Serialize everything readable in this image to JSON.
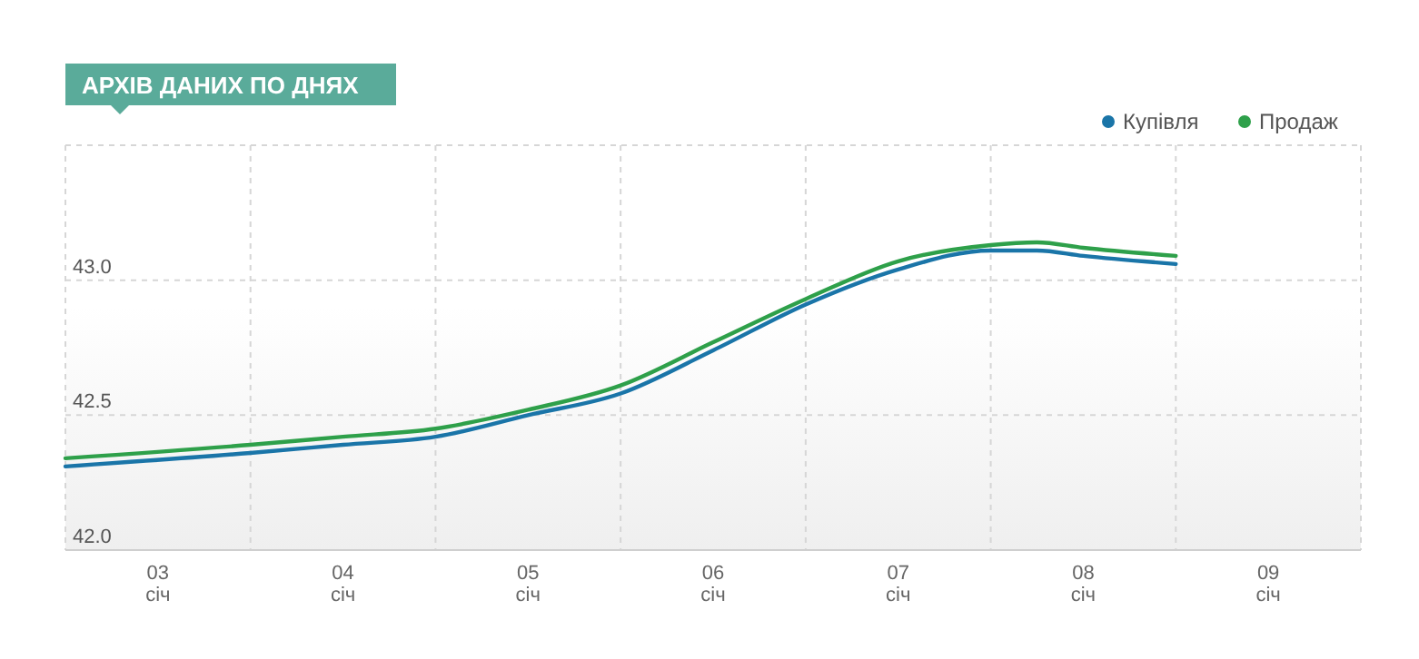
{
  "chart_data": {
    "type": "line",
    "title": "АРХІВ ДАНИХ ПО ДНЯХ",
    "x": [
      2.5,
      3.5,
      4,
      4.5,
      5,
      5.5,
      6,
      6.5,
      7,
      7.5,
      7.75,
      8,
      8.5
    ],
    "series": [
      {
        "name": "Купівля",
        "color": "#1a75a8",
        "values": [
          42.31,
          42.36,
          42.39,
          42.42,
          42.5,
          42.58,
          42.74,
          42.91,
          43.04,
          43.11,
          43.11,
          43.09,
          43.06
        ]
      },
      {
        "name": "Продаж",
        "color": "#2ea04a",
        "values": [
          42.34,
          42.39,
          42.42,
          42.45,
          42.52,
          42.61,
          42.77,
          42.93,
          43.07,
          43.13,
          43.14,
          43.12,
          43.09
        ]
      }
    ],
    "xlim": [
      2.5,
      9.5
    ],
    "xticks": [
      {
        "value": 2.5,
        "label": null
      },
      {
        "value": 3,
        "label": "03\nсіч"
      },
      {
        "value": 3.5,
        "label": null
      },
      {
        "value": 4,
        "label": "04\nсіч"
      },
      {
        "value": 4.5,
        "label": null
      },
      {
        "value": 5,
        "label": "05\nсіч"
      },
      {
        "value": 5.5,
        "label": null
      },
      {
        "value": 6,
        "label": "06\nсіч"
      },
      {
        "value": 6.5,
        "label": null
      },
      {
        "value": 7,
        "label": "07\nсіч"
      },
      {
        "value": 7.5,
        "label": null
      },
      {
        "value": 8,
        "label": "08\nсіч"
      },
      {
        "value": 8.5,
        "label": null
      },
      {
        "value": 9,
        "label": "09\nсіч"
      },
      {
        "value": 9.5,
        "label": null
      }
    ],
    "ylim": [
      42,
      43.5
    ],
    "yticks": [
      {
        "value": 42,
        "label": "42.0"
      },
      {
        "value": 42.5,
        "label": "42.5"
      },
      {
        "value": 43,
        "label": "43.0"
      }
    ],
    "grid": true,
    "legend": "top right",
    "marker": "none",
    "line_style": "solid"
  }
}
